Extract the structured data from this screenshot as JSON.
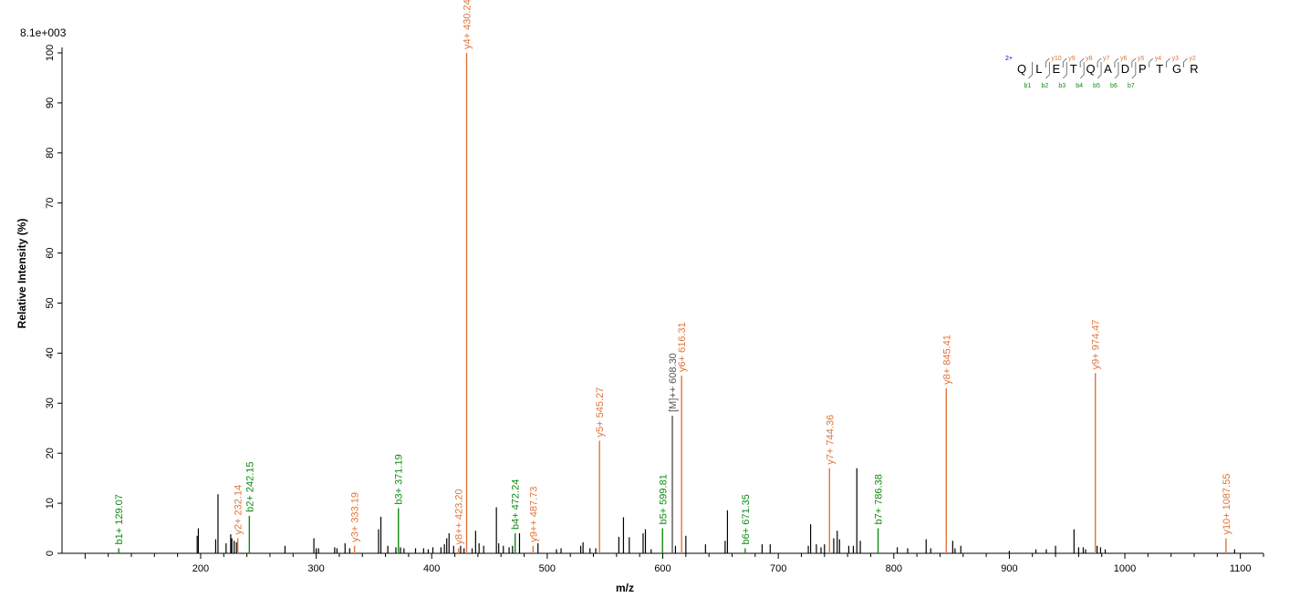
{
  "chart_data": {
    "type": "bar",
    "max_intensity_label": "8.1e+003",
    "xlabel": "m/z",
    "ylabel": "Relative   Intensity (%)",
    "xlim": [
      80,
      1120
    ],
    "ylim": [
      0,
      100
    ],
    "x_ticks": [
      200,
      300,
      400,
      500,
      600,
      700,
      800,
      900,
      1000,
      1100
    ],
    "y_ticks": [
      0,
      10,
      20,
      30,
      40,
      50,
      60,
      70,
      80,
      90,
      100
    ],
    "colors": {
      "y_ion": "#e0743b",
      "b_ion": "#108a10",
      "precursor": "#555555",
      "unassigned": "#000000",
      "axis": "#000000",
      "charge": "#0000cc"
    },
    "annotated_peaks": [
      {
        "label": "b1+ 129.07",
        "mz": 129.07,
        "intensity": 1.0,
        "ion": "b"
      },
      {
        "label": "y2+ 232.14",
        "mz": 232.14,
        "intensity": 3.0,
        "ion": "y"
      },
      {
        "label": "b2+ 242.15",
        "mz": 242.15,
        "intensity": 7.5,
        "ion": "b"
      },
      {
        "label": "y3+ 333.19",
        "mz": 333.19,
        "intensity": 1.5,
        "ion": "y"
      },
      {
        "label": "b3+ 371.19",
        "mz": 371.19,
        "intensity": 9.0,
        "ion": "b"
      },
      {
        "label": "y8++ 423.20",
        "mz": 423.2,
        "intensity": 1.0,
        "ion": "y"
      },
      {
        "label": "y4+ 430.24",
        "mz": 430.24,
        "intensity": 100.0,
        "ion": "y"
      },
      {
        "label": "b4+ 472.24",
        "mz": 472.24,
        "intensity": 4.0,
        "ion": "b"
      },
      {
        "label": "y9++ 487.73",
        "mz": 487.73,
        "intensity": 1.5,
        "ion": "y"
      },
      {
        "label": "y5+ 545.27",
        "mz": 545.27,
        "intensity": 22.5,
        "ion": "y"
      },
      {
        "label": "b5+ 599.81",
        "mz": 599.81,
        "intensity": 5.0,
        "ion": "b"
      },
      {
        "label": "[M]++ 608.30",
        "mz": 608.3,
        "intensity": 27.5,
        "ion": "precursor"
      },
      {
        "label": "y6+ 616.31",
        "mz": 616.31,
        "intensity": 35.5,
        "ion": "y"
      },
      {
        "label": "b6+ 671.35",
        "mz": 671.35,
        "intensity": 1.0,
        "ion": "b"
      },
      {
        "label": "y7+ 744.36",
        "mz": 744.36,
        "intensity": 17.0,
        "ion": "y"
      },
      {
        "label": "b7+ 786.38",
        "mz": 786.38,
        "intensity": 5.0,
        "ion": "b"
      },
      {
        "label": "y8+ 845.41",
        "mz": 845.41,
        "intensity": 33.0,
        "ion": "y"
      },
      {
        "label": "y9+ 974.47",
        "mz": 974.47,
        "intensity": 36.0,
        "ion": "y"
      },
      {
        "label": "y10+ 1087.55",
        "mz": 1087.55,
        "intensity": 3.0,
        "ion": "y"
      }
    ],
    "unassigned_peaks": [
      [
        197,
        3.5
      ],
      [
        198,
        5.0
      ],
      [
        213,
        2.8
      ],
      [
        215,
        11.8
      ],
      [
        222,
        2.0
      ],
      [
        226,
        3.8
      ],
      [
        227,
        3.0
      ],
      [
        229,
        2.5
      ],
      [
        231,
        2.2
      ],
      [
        273,
        1.5
      ],
      [
        298,
        3.0
      ],
      [
        300,
        1.0
      ],
      [
        302,
        1.0
      ],
      [
        316,
        1.2
      ],
      [
        318,
        1.0
      ],
      [
        325,
        2.0
      ],
      [
        329,
        1.0
      ],
      [
        354,
        4.8
      ],
      [
        356,
        7.3
      ],
      [
        362,
        1.5
      ],
      [
        369,
        1.2
      ],
      [
        373,
        1.2
      ],
      [
        376,
        1.0
      ],
      [
        386,
        1.0
      ],
      [
        393,
        1.0
      ],
      [
        397,
        0.8
      ],
      [
        401,
        1.2
      ],
      [
        408,
        1.2
      ],
      [
        411,
        1.8
      ],
      [
        413,
        3.0
      ],
      [
        415,
        4.0
      ],
      [
        419,
        1.5
      ],
      [
        425,
        1.5
      ],
      [
        428,
        1.0
      ],
      [
        435,
        1.0
      ],
      [
        438,
        4.5
      ],
      [
        441,
        2.0
      ],
      [
        445,
        1.5
      ],
      [
        456,
        9.2
      ],
      [
        458,
        2.0
      ],
      [
        462,
        1.5
      ],
      [
        467,
        1.2
      ],
      [
        470,
        1.5
      ],
      [
        476,
        4.0
      ],
      [
        492,
        2.0
      ],
      [
        508,
        0.8
      ],
      [
        512,
        1.0
      ],
      [
        529,
        1.5
      ],
      [
        531,
        2.2
      ],
      [
        537,
        1.0
      ],
      [
        542,
        1.0
      ],
      [
        562,
        3.3
      ],
      [
        566,
        7.2
      ],
      [
        571,
        3.2
      ],
      [
        583,
        4.0
      ],
      [
        585,
        4.8
      ],
      [
        590,
        0.8
      ],
      [
        611,
        1.5
      ],
      [
        620,
        3.5
      ],
      [
        637,
        1.8
      ],
      [
        654,
        2.5
      ],
      [
        656,
        8.6
      ],
      [
        686,
        1.8
      ],
      [
        693,
        1.8
      ],
      [
        726,
        1.5
      ],
      [
        728,
        5.8
      ],
      [
        733,
        1.8
      ],
      [
        737,
        1.2
      ],
      [
        740,
        1.8
      ],
      [
        748,
        3.0
      ],
      [
        751,
        4.5
      ],
      [
        753,
        2.8
      ],
      [
        761,
        1.5
      ],
      [
        765,
        1.5
      ],
      [
        768,
        17.0
      ],
      [
        771,
        2.5
      ],
      [
        803,
        1.2
      ],
      [
        812,
        1.0
      ],
      [
        828,
        2.8
      ],
      [
        832,
        1.0
      ],
      [
        851,
        2.5
      ],
      [
        853,
        1.0
      ],
      [
        858,
        1.5
      ],
      [
        900,
        0.5
      ],
      [
        923,
        0.8
      ],
      [
        932,
        0.8
      ],
      [
        940,
        1.5
      ],
      [
        956,
        4.8
      ],
      [
        960,
        1.2
      ],
      [
        964,
        1.2
      ],
      [
        966,
        0.8
      ],
      [
        976,
        1.5
      ],
      [
        979,
        1.2
      ],
      [
        983,
        0.8
      ],
      [
        1095,
        0.8
      ]
    ],
    "sequence": {
      "charge": "2+",
      "residues": [
        "Q",
        "L",
        "E",
        "T",
        "Q",
        "A",
        "D",
        "P",
        "T",
        "G",
        "R"
      ],
      "y_ions": [
        "y10",
        "y9",
        "y8",
        "y7",
        "y6",
        "y5",
        "y4",
        "y3",
        "y2"
      ],
      "b_ions": [
        "b1",
        "b2",
        "b3",
        "b4",
        "b5",
        "b6",
        "b7"
      ]
    }
  }
}
